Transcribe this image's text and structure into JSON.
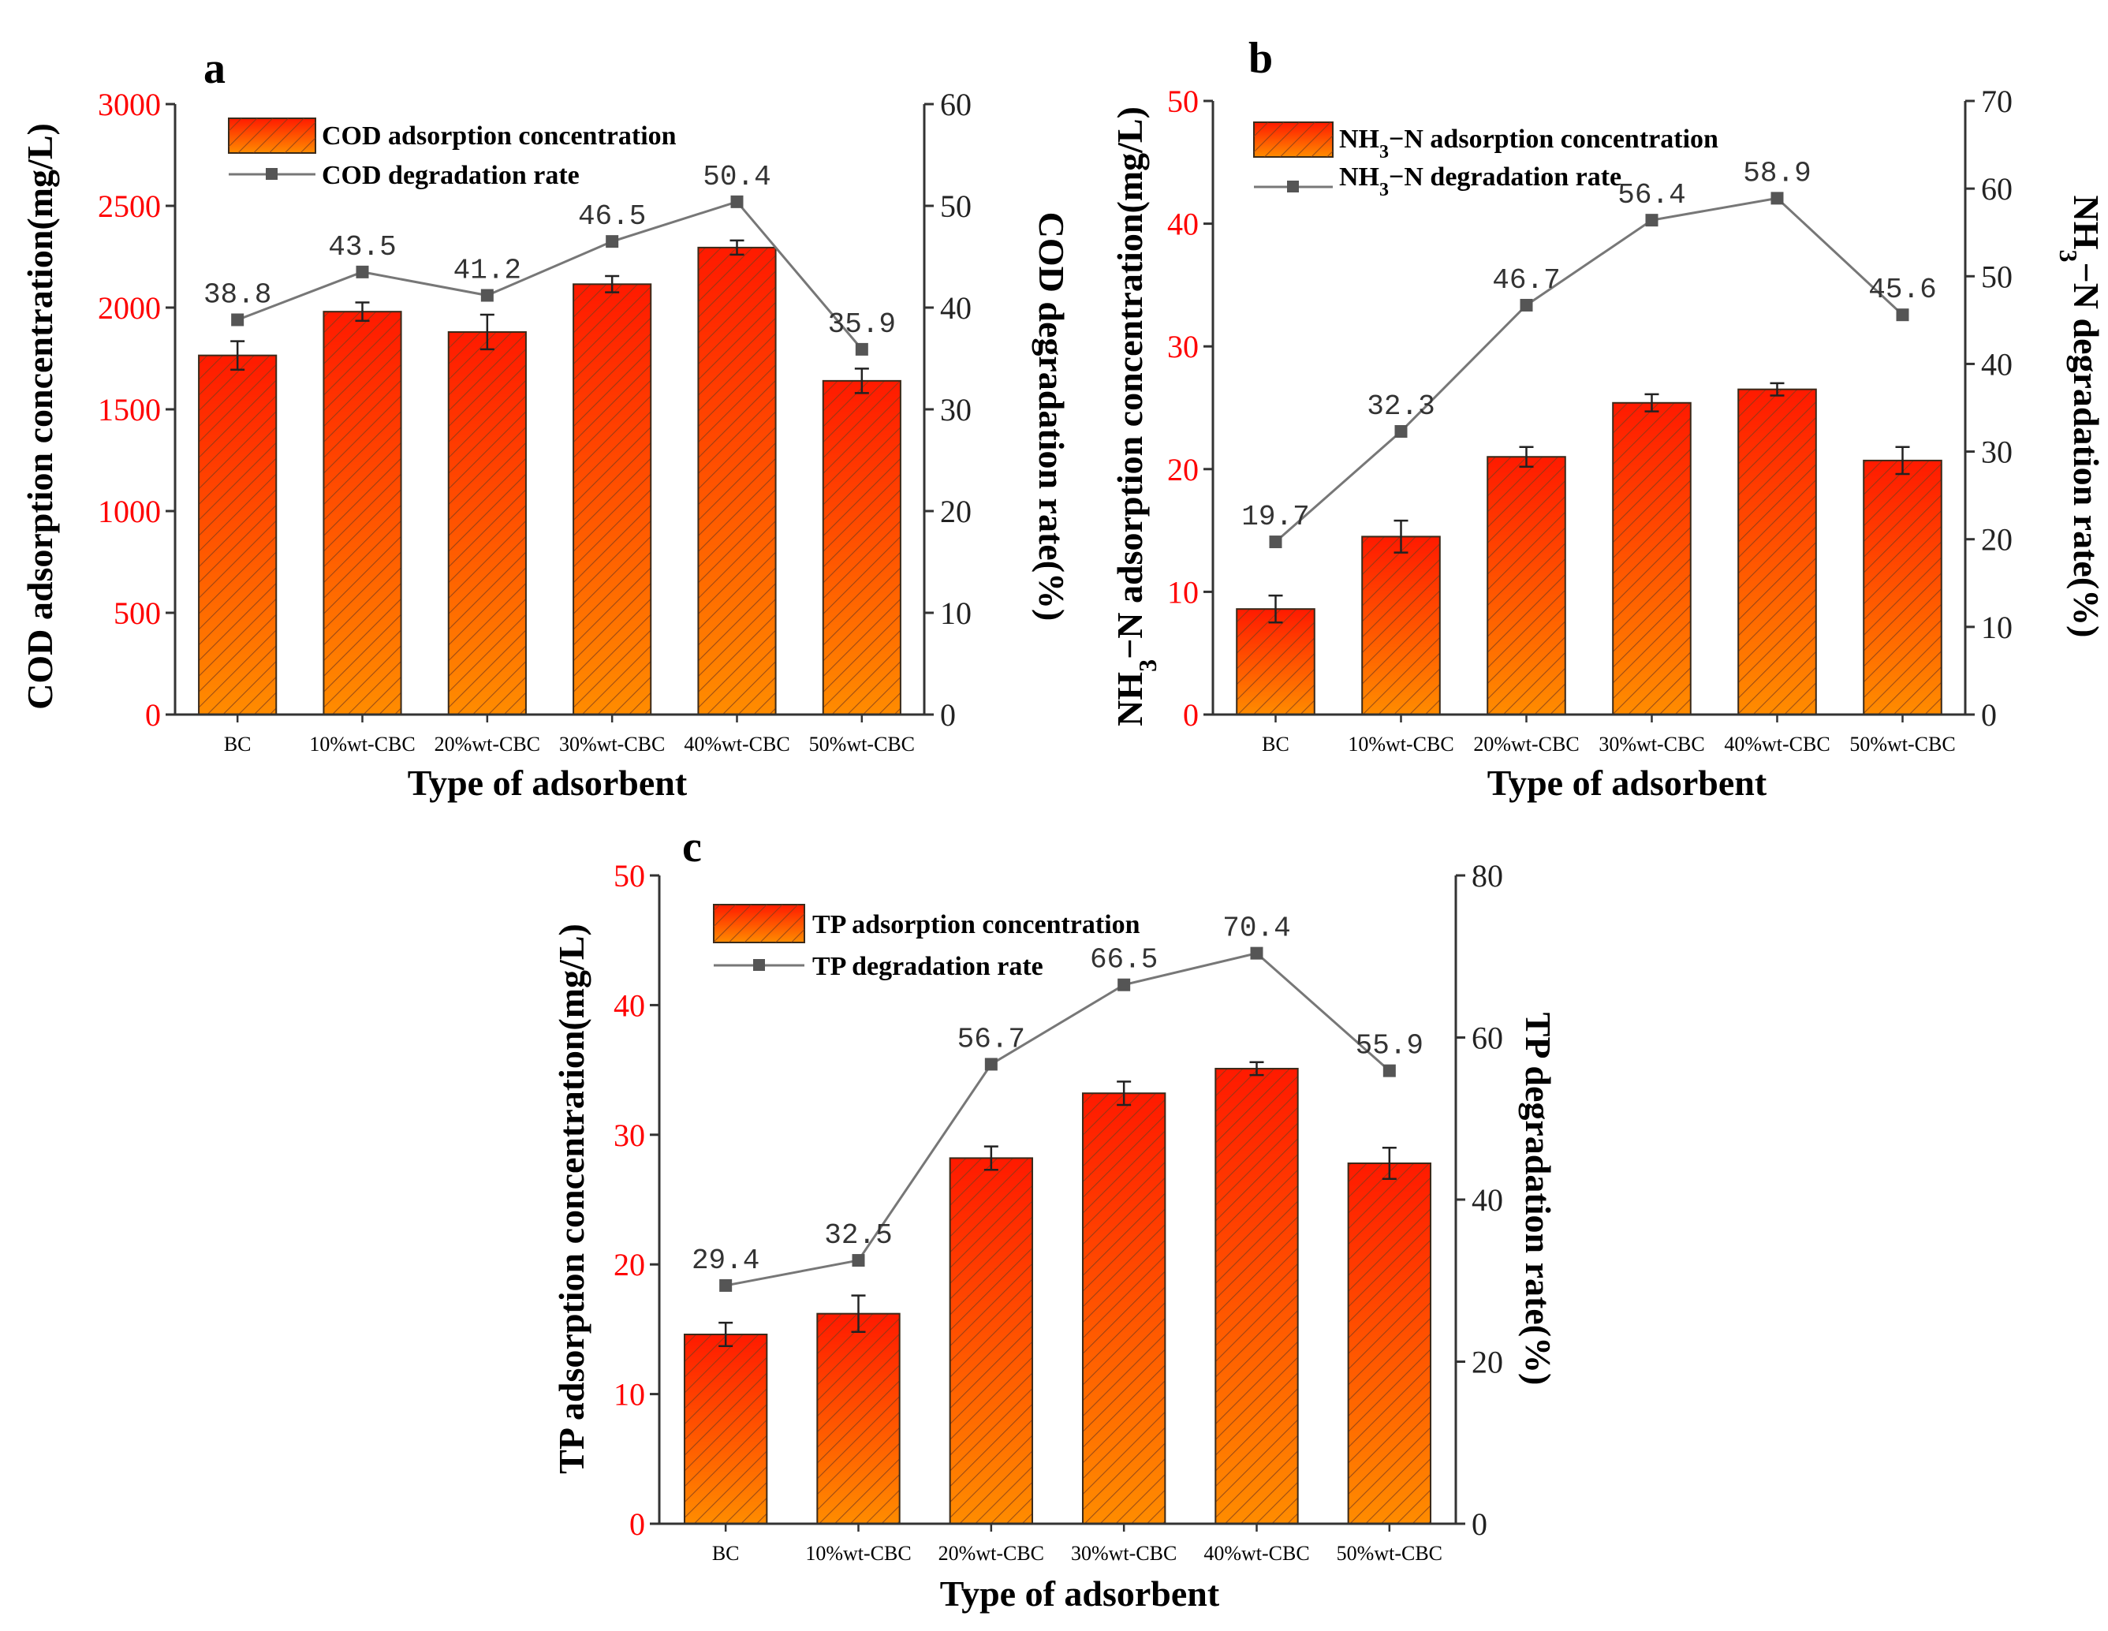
{
  "chart_data": [
    {
      "id": "a",
      "type": "bar+line",
      "panel_label": "a",
      "categories": [
        "BC",
        "10%wt-CBC",
        "20%wt-CBC",
        "30%wt-CBC",
        "40%wt-CBC",
        "50%wt-CBC"
      ],
      "bar_series": {
        "name": "COD adsorption concentration",
        "values": [
          1765,
          1980,
          1880,
          2115,
          2295,
          1640
        ],
        "errors": [
          70,
          45,
          85,
          40,
          35,
          60
        ]
      },
      "line_series": {
        "name": "COD degradation rate",
        "values": [
          38.8,
          43.5,
          41.2,
          46.5,
          50.4,
          35.9
        ],
        "labels": [
          "38.8",
          "43.5",
          "41.2",
          "46.5",
          "50.4",
          "35.9"
        ]
      },
      "xlabel": "Type of adsorbent",
      "ylabel_left": "COD adsorption concentration(mg/L)",
      "ylabel_right": "COD degradation rate(%)",
      "ylim_left": [
        0,
        3000
      ],
      "yticks_left": [
        "0",
        "500",
        "1000",
        "1500",
        "2000",
        "2500",
        "3000"
      ],
      "ylim_right": [
        0,
        60
      ],
      "yticks_right": [
        "0",
        "10",
        "20",
        "30",
        "40",
        "50",
        "60"
      ],
      "legend_position": "top-left"
    },
    {
      "id": "b",
      "type": "bar+line",
      "panel_label": "b",
      "categories": [
        "BC",
        "10%wt-CBC",
        "20%wt-CBC",
        "30%wt-CBC",
        "40%wt-CBC",
        "50%wt-CBC"
      ],
      "bar_series": {
        "name": "NH3−N adsorption concentration",
        "values": [
          8.6,
          14.5,
          21.0,
          25.4,
          26.5,
          20.7
        ],
        "errors": [
          1.1,
          1.3,
          0.8,
          0.7,
          0.5,
          1.1
        ]
      },
      "line_series": {
        "name": "NH3−N degradation rate",
        "values": [
          19.7,
          32.3,
          46.7,
          56.4,
          58.9,
          45.6
        ],
        "labels": [
          "19.7",
          "32.3",
          "46.7",
          "56.4",
          "58.9",
          "45.6"
        ]
      },
      "xlabel": "Type of adsorbent",
      "ylabel_left": "NH3−N adsorption concentration(mg/L)",
      "ylabel_right": "NH3−N degradation rate(%)",
      "ylim_left": [
        0,
        50
      ],
      "yticks_left": [
        "0",
        "10",
        "20",
        "30",
        "40",
        "50"
      ],
      "ylim_right": [
        0,
        70
      ],
      "yticks_right": [
        "0",
        "10",
        "20",
        "30",
        "40",
        "50",
        "60",
        "70"
      ],
      "legend_position": "top-left"
    },
    {
      "id": "c",
      "type": "bar+line",
      "panel_label": "c",
      "categories": [
        "BC",
        "10%wt-CBC",
        "20%wt-CBC",
        "30%wt-CBC",
        "40%wt-CBC",
        "50%wt-CBC"
      ],
      "bar_series": {
        "name": "TP adsorption concentration",
        "values": [
          14.6,
          16.2,
          28.2,
          33.2,
          35.1,
          27.8
        ],
        "errors": [
          0.9,
          1.4,
          0.9,
          0.9,
          0.5,
          1.2
        ]
      },
      "line_series": {
        "name": "TP degradation rate",
        "values": [
          29.4,
          32.5,
          56.7,
          66.5,
          70.4,
          55.9
        ],
        "labels": [
          "29.4",
          "32.5",
          "56.7",
          "66.5",
          "70.4",
          "55.9"
        ]
      },
      "xlabel": "Type of adsorbent",
      "ylabel_left": "TP adsorption concentration(mg/L)",
      "ylabel_right": "TP degradation rate(%)",
      "ylim_left": [
        0,
        50
      ],
      "yticks_left": [
        "0",
        "10",
        "20",
        "30",
        "40",
        "50"
      ],
      "ylim_right": [
        0,
        80
      ],
      "yticks_right": [
        "0",
        "20",
        "40",
        "60",
        "80"
      ],
      "legend_position": "top-left"
    }
  ],
  "colors": {
    "bar_top": "#ff1a00",
    "bar_bottom": "#ff8c00",
    "bar_stroke": "#3a2a1a",
    "hatch": "#7a3a1a",
    "line": "#777777",
    "marker": "#555555",
    "left_ticks": "#ff0000",
    "axis": "#333333"
  }
}
